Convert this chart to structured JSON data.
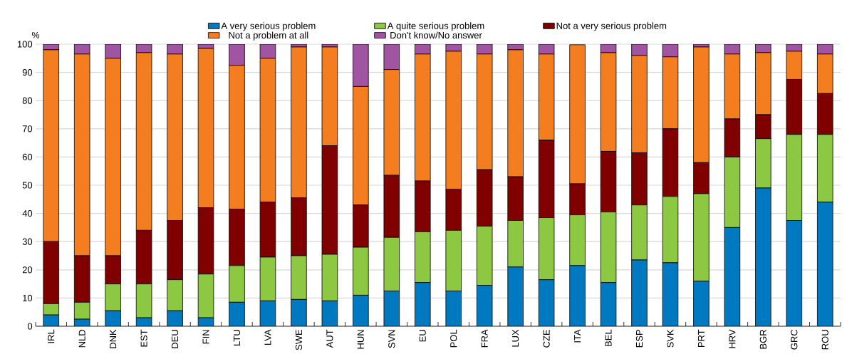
{
  "chart_data": {
    "type": "bar",
    "stacked": true,
    "ylabel": "%",
    "legend": "top",
    "grid": "y",
    "ylim": [
      0,
      100
    ],
    "yticks": [
      0,
      10,
      20,
      30,
      40,
      50,
      60,
      70,
      80,
      90,
      100
    ],
    "categories": [
      "IRL",
      "NLD",
      "DNK",
      "EST",
      "DEU",
      "FIN",
      "LTU",
      "LVA",
      "SWE",
      "AUT",
      "HUN",
      "SVN",
      "EU",
      "POL",
      "FRA",
      "LUX",
      "CZE",
      "ITA",
      "BEL",
      "ESP",
      "SVK",
      "PRT",
      "HRV",
      "BGR",
      "GRC",
      "ROU"
    ],
    "series": [
      {
        "name": "A very serious problem",
        "color": "#0079c1",
        "values": [
          4,
          2.5,
          5.5,
          3,
          5.5,
          3,
          8.5,
          9,
          9.5,
          9,
          11,
          12.5,
          15.5,
          12.5,
          14.5,
          21,
          16.5,
          21.5,
          15.5,
          23.5,
          22.5,
          16,
          35,
          49,
          37.5,
          44
        ]
      },
      {
        "name": "A quite serious problem",
        "color": "#8cc841",
        "values": [
          4,
          6,
          9.5,
          12,
          11,
          15.5,
          13,
          15.5,
          15.5,
          16.5,
          17,
          19,
          18,
          21.5,
          21,
          16.5,
          22,
          18,
          25,
          19.5,
          23.5,
          31,
          25,
          17.5,
          30.5,
          24
        ]
      },
      {
        "name": "Not a very serious problem",
        "color": "#800000",
        "values": [
          22,
          16.5,
          10,
          19,
          21,
          23.5,
          20,
          19.5,
          20.5,
          38.5,
          15,
          22,
          18,
          14.5,
          20,
          15.5,
          27.5,
          11,
          21.5,
          18.5,
          24,
          11,
          13.5,
          8.5,
          19.5,
          14.5
        ]
      },
      {
        "name": "Not a problem at all",
        "color": "#f47d20",
        "values": [
          68,
          71.5,
          70,
          63,
          59,
          56.5,
          51,
          51,
          53.5,
          35,
          42,
          37.5,
          45,
          49,
          41,
          45,
          30.5,
          49.3,
          35,
          34.5,
          25.5,
          41,
          23,
          22,
          10,
          14
        ]
      },
      {
        "name": "Don't know/No answer",
        "color": "#a154a1",
        "values": [
          2,
          3.5,
          5,
          3,
          3.5,
          1.5,
          7.5,
          5,
          1,
          1,
          15,
          9,
          3.5,
          2.5,
          3.5,
          2,
          3.5,
          null,
          3,
          4,
          4.5,
          1,
          3.5,
          3,
          2.5,
          3.5
        ]
      }
    ]
  }
}
